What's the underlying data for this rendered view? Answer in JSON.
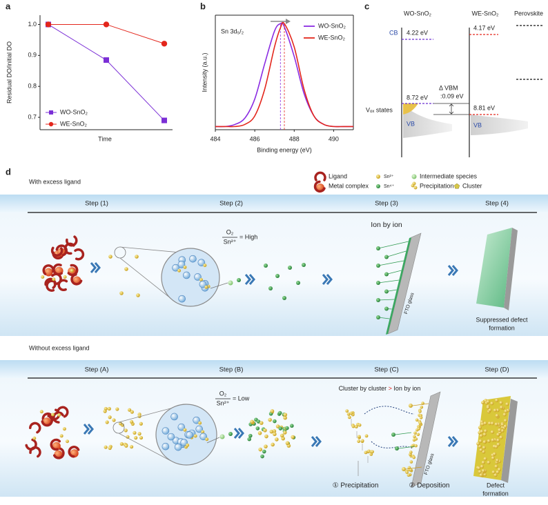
{
  "panel_labels": [
    "a",
    "b",
    "c",
    "d"
  ],
  "chart_data": [
    {
      "type": "line",
      "categories": [
        null,
        null,
        null
      ],
      "xlabel": "Time",
      "ylabel": "Residual DO/initial DO",
      "ylim": [
        0.66,
        1.03
      ],
      "yticks": [
        {
          "value": 1.0,
          "label": "1.0"
        },
        0.9,
        0.8,
        0.7
      ],
      "legend": "lower left",
      "series": [
        {
          "name": "WO-SnO₂",
          "color": "#7b2fd6",
          "marker": "square",
          "values": [
            1.0,
            0.885,
            0.69
          ]
        },
        {
          "name": "WE-SnO₂",
          "color": "#e3261c",
          "marker": "circle",
          "values": [
            1.0,
            1.0,
            0.938
          ]
        }
      ]
    },
    {
      "type": "line",
      "annotation": "Sn 3d₅/₂",
      "xlabel": "Binding energy (eV)",
      "ylabel": "Intensity (a.u.)",
      "xlim": [
        484,
        491
      ],
      "xticks": [
        484,
        486,
        488,
        490
      ],
      "ylim": [
        0,
        1.08
      ],
      "legend": "upper right",
      "x": [
        484,
        484.5,
        485,
        485.5,
        486,
        486.5,
        487,
        487.3,
        487.5,
        488,
        488.5,
        489,
        489.5,
        490,
        490.5,
        491
      ],
      "series": [
        {
          "name": "WO-SnO₂",
          "color": "#8a2be2",
          "peak": 487.3,
          "values": [
            0.03,
            0.03,
            0.05,
            0.11,
            0.29,
            0.62,
            0.93,
            1.0,
            0.97,
            0.69,
            0.34,
            0.13,
            0.05,
            0.03,
            0.03,
            0.03
          ]
        },
        {
          "name": "WE-SnO₂",
          "color": "#e3261c",
          "peak": 487.5,
          "values": [
            0.03,
            0.03,
            0.03,
            0.05,
            0.13,
            0.38,
            0.78,
            0.96,
            1.0,
            0.78,
            0.38,
            0.13,
            0.05,
            0.03,
            0.03,
            0.03
          ]
        }
      ]
    }
  ],
  "band_diagram": {
    "columns": [
      "WO-SnO₂",
      "WE-SnO₂",
      "Perovskite"
    ],
    "cb": "CB",
    "wo_cb": "4.22 eV",
    "we_cb": "4.17 eV",
    "wo_vb": "8.72 eV",
    "we_vb": "8.81 eV",
    "delta": [
      "Δ VBM",
      ":0.09 eV"
    ],
    "states": "Vₒₓ states",
    "vb": [
      "VB",
      "VB"
    ]
  },
  "schematic": {
    "legend": [
      "Ligand",
      "Metal complex",
      "Sn²⁺",
      "Sn⁴⁺",
      "Intermediate species",
      "Precipitation",
      "Cluster"
    ],
    "top": {
      "heading": "With excess ligand",
      "steps": [
        "Step (1)",
        "Step (2)",
        "Step (3)",
        "Step (4)"
      ],
      "ratio": [
        "O₂",
        "Sn²⁺",
        "= High"
      ],
      "mode": "Ion by ion",
      "substrate": "FTO glass",
      "result": [
        "Suppressed defect",
        "formation"
      ]
    },
    "bottom": {
      "heading": "Without excess ligand",
      "steps": [
        "Step (A)",
        "Step (B)",
        "Step (C)",
        "Step (D)"
      ],
      "ratio": [
        "O₂",
        "Sn²⁺",
        "= Low"
      ],
      "mode": [
        "Cluster by cluster",
        ">",
        "Ion by ion"
      ],
      "substrate": "FTO glass",
      "labels": [
        "① Precipitation",
        "② Deposition"
      ],
      "result": [
        "Defect",
        "formation"
      ]
    }
  }
}
